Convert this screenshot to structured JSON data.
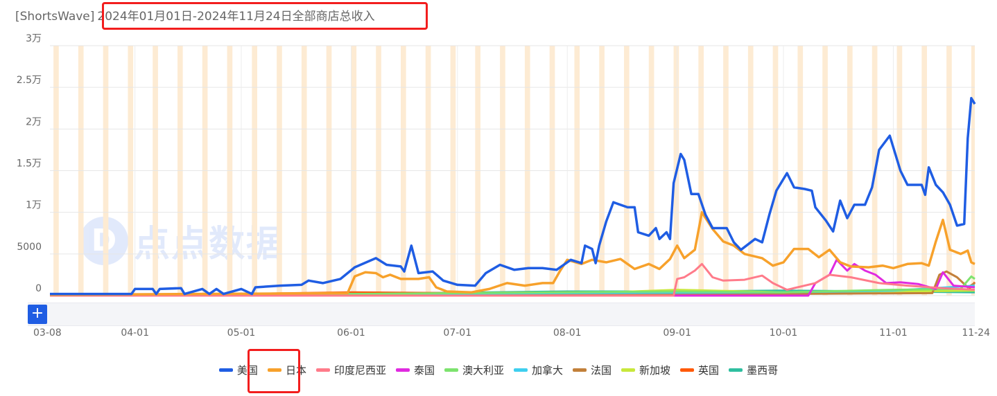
{
  "title": {
    "prefix": "[ShortsWave]",
    "main": "2024年01月01日-2024年11月24日全部商店总收入"
  },
  "watermark": "点点数据",
  "zoom_button": "+",
  "chart_data": {
    "type": "line",
    "title": "[ShortsWave] 2024年01月01日-2024年11月24日全部商店总收入",
    "x_range": [
      "2024-03-08",
      "2024-11-24"
    ],
    "x_ticks": [
      [
        "2024-03-08",
        "03-08"
      ],
      [
        "2024-04-01",
        "04-01"
      ],
      [
        "2024-05-01",
        "05-01"
      ],
      [
        "2024-06-01",
        "06-01"
      ],
      [
        "2024-07-01",
        "07-01"
      ],
      [
        "2024-08-01",
        "08-01"
      ],
      [
        "2024-09-01",
        "09-01"
      ],
      [
        "2024-10-01",
        "10-01"
      ],
      [
        "2024-11-01",
        "11-01"
      ],
      [
        "2024-11-24",
        "11-24"
      ]
    ],
    "ylim": [
      0,
      30000
    ],
    "y_ticks": [
      [
        0,
        "0"
      ],
      [
        5000,
        "5000"
      ],
      [
        10000,
        "1万"
      ],
      [
        15000,
        "1.5万"
      ],
      [
        20000,
        "2万"
      ],
      [
        25000,
        "2.5万"
      ],
      [
        30000,
        "3万"
      ]
    ],
    "grid": true,
    "weekend_shading": true,
    "shading_color": "#fdebd3",
    "legend_position": "bottom",
    "series": [
      {
        "name": "美国",
        "color": "#1f5de3",
        "points": [
          [
            "03-08",
            200
          ],
          [
            "03-31",
            200
          ],
          [
            "04-01",
            800
          ],
          [
            "04-06",
            800
          ],
          [
            "04-07",
            200
          ],
          [
            "04-08",
            800
          ],
          [
            "04-14",
            900
          ],
          [
            "04-15",
            200
          ],
          [
            "04-20",
            800
          ],
          [
            "04-22",
            200
          ],
          [
            "04-24",
            800
          ],
          [
            "04-26",
            200
          ],
          [
            "05-01",
            800
          ],
          [
            "05-04",
            200
          ],
          [
            "05-05",
            1000
          ],
          [
            "05-12",
            1200
          ],
          [
            "05-18",
            1300
          ],
          [
            "05-20",
            1800
          ],
          [
            "05-24",
            1500
          ],
          [
            "05-29",
            2000
          ],
          [
            "06-02",
            3400
          ],
          [
            "06-08",
            4500
          ],
          [
            "06-11",
            3700
          ],
          [
            "06-15",
            3500
          ],
          [
            "06-16",
            2900
          ],
          [
            "06-18",
            6000
          ],
          [
            "06-20",
            2700
          ],
          [
            "06-24",
            2900
          ],
          [
            "06-27",
            1800
          ],
          [
            "07-01",
            1300
          ],
          [
            "07-06",
            1200
          ],
          [
            "07-09",
            2700
          ],
          [
            "07-13",
            3700
          ],
          [
            "07-17",
            3100
          ],
          [
            "07-21",
            3300
          ],
          [
            "07-25",
            3300
          ],
          [
            "07-29",
            3100
          ],
          [
            "08-02",
            4300
          ],
          [
            "08-05",
            3900
          ],
          [
            "08-06",
            6000
          ],
          [
            "08-08",
            5600
          ],
          [
            "08-09",
            3900
          ],
          [
            "08-10",
            6000
          ],
          [
            "08-12",
            8900
          ],
          [
            "08-14",
            11200
          ],
          [
            "08-18",
            10600
          ],
          [
            "08-20",
            10600
          ],
          [
            "08-21",
            7600
          ],
          [
            "08-24",
            7200
          ],
          [
            "08-26",
            8100
          ],
          [
            "08-27",
            6800
          ],
          [
            "08-29",
            7600
          ],
          [
            "08-30",
            6800
          ],
          [
            "08-31",
            13500
          ],
          [
            "09-02",
            17000
          ],
          [
            "09-03",
            16300
          ],
          [
            "09-05",
            12200
          ],
          [
            "09-07",
            12200
          ],
          [
            "09-09",
            9700
          ],
          [
            "09-11",
            8100
          ],
          [
            "09-15",
            8100
          ],
          [
            "09-17",
            6400
          ],
          [
            "09-19",
            5500
          ],
          [
            "09-23",
            6800
          ],
          [
            "09-25",
            6400
          ],
          [
            "09-27",
            9700
          ],
          [
            "09-29",
            12600
          ],
          [
            "10-02",
            14700
          ],
          [
            "10-04",
            13000
          ],
          [
            "10-07",
            12800
          ],
          [
            "10-09",
            12600
          ],
          [
            "10-10",
            10600
          ],
          [
            "10-13",
            9000
          ],
          [
            "10-15",
            7700
          ],
          [
            "10-17",
            11400
          ],
          [
            "10-19",
            9300
          ],
          [
            "10-21",
            10900
          ],
          [
            "10-24",
            10900
          ],
          [
            "10-26",
            13000
          ],
          [
            "10-28",
            17500
          ],
          [
            "10-31",
            19200
          ],
          [
            "11-03",
            15000
          ],
          [
            "11-05",
            13300
          ],
          [
            "11-09",
            13300
          ],
          [
            "11-10",
            12100
          ],
          [
            "11-11",
            15400
          ],
          [
            "11-13",
            13300
          ],
          [
            "11-15",
            12400
          ],
          [
            "11-17",
            10900
          ],
          [
            "11-19",
            8400
          ],
          [
            "11-21",
            8600
          ],
          [
            "11-22",
            18900
          ],
          [
            "11-23",
            23700
          ],
          [
            "11-24",
            23000
          ]
        ]
      },
      {
        "name": "日本",
        "color": "#f7a12b",
        "points": [
          [
            "03-08",
            100
          ],
          [
            "05-31",
            300
          ],
          [
            "06-02",
            2300
          ],
          [
            "06-05",
            2800
          ],
          [
            "06-08",
            2700
          ],
          [
            "06-10",
            2200
          ],
          [
            "06-12",
            2500
          ],
          [
            "06-15",
            2000
          ],
          [
            "06-20",
            2000
          ],
          [
            "06-23",
            2200
          ],
          [
            "06-25",
            1000
          ],
          [
            "06-28",
            500
          ],
          [
            "07-05",
            400
          ],
          [
            "07-10",
            800
          ],
          [
            "07-15",
            1500
          ],
          [
            "07-20",
            1200
          ],
          [
            "07-25",
            1500
          ],
          [
            "07-28",
            1500
          ],
          [
            "07-30",
            3000
          ],
          [
            "08-01",
            4300
          ],
          [
            "08-05",
            3800
          ],
          [
            "08-08",
            4300
          ],
          [
            "08-12",
            4000
          ],
          [
            "08-16",
            4400
          ],
          [
            "08-20",
            3200
          ],
          [
            "08-24",
            3800
          ],
          [
            "08-27",
            3200
          ],
          [
            "08-30",
            4400
          ],
          [
            "09-01",
            6000
          ],
          [
            "09-03",
            4500
          ],
          [
            "09-06",
            5500
          ],
          [
            "09-08",
            10000
          ],
          [
            "09-11",
            8000
          ],
          [
            "09-14",
            6500
          ],
          [
            "09-17",
            6000
          ],
          [
            "09-20",
            5000
          ],
          [
            "09-25",
            4500
          ],
          [
            "09-28",
            3600
          ],
          [
            "10-01",
            4000
          ],
          [
            "10-04",
            5600
          ],
          [
            "10-08",
            5600
          ],
          [
            "10-11",
            4600
          ],
          [
            "10-14",
            5500
          ],
          [
            "10-17",
            4000
          ],
          [
            "10-20",
            3500
          ],
          [
            "10-25",
            3400
          ],
          [
            "10-29",
            3600
          ],
          [
            "11-01",
            3300
          ],
          [
            "11-05",
            3800
          ],
          [
            "11-09",
            3900
          ],
          [
            "11-11",
            3600
          ],
          [
            "11-13",
            6500
          ],
          [
            "11-15",
            9100
          ],
          [
            "11-17",
            5500
          ],
          [
            "11-20",
            5000
          ],
          [
            "11-22",
            5400
          ],
          [
            "11-23",
            4000
          ],
          [
            "11-24",
            3800
          ]
        ]
      },
      {
        "name": "印度尼西亚",
        "color": "#ff7b8a",
        "points": [
          [
            "08-31",
            0
          ],
          [
            "09-01",
            2000
          ],
          [
            "09-03",
            2200
          ],
          [
            "09-06",
            3000
          ],
          [
            "09-08",
            3800
          ],
          [
            "09-11",
            2200
          ],
          [
            "09-14",
            1800
          ],
          [
            "09-20",
            1900
          ],
          [
            "09-25",
            2400
          ],
          [
            "09-28",
            1500
          ],
          [
            "10-02",
            700
          ],
          [
            "10-10",
            1500
          ],
          [
            "10-14",
            2500
          ],
          [
            "10-20",
            2200
          ],
          [
            "10-28",
            1500
          ],
          [
            "11-05",
            1200
          ],
          [
            "11-15",
            900
          ],
          [
            "11-24",
            700
          ]
        ]
      },
      {
        "name": "泰国",
        "color": "#e02ae0",
        "points": [
          [
            "10-08",
            0
          ],
          [
            "10-10",
            1500
          ],
          [
            "10-14",
            2500
          ],
          [
            "10-16",
            4300
          ],
          [
            "10-19",
            3000
          ],
          [
            "10-21",
            3800
          ],
          [
            "10-24",
            3000
          ],
          [
            "10-27",
            2500
          ],
          [
            "10-30",
            1500
          ],
          [
            "11-03",
            1600
          ],
          [
            "11-08",
            1400
          ],
          [
            "11-13",
            800
          ],
          [
            "11-15",
            2800
          ],
          [
            "11-18",
            1200
          ],
          [
            "11-24",
            1000
          ]
        ]
      },
      {
        "name": "澳大利亚",
        "color": "#7de36e",
        "points": [
          [
            "03-08",
            100
          ],
          [
            "06-01",
            200
          ],
          [
            "08-01",
            400
          ],
          [
            "09-01",
            500
          ],
          [
            "10-01",
            400
          ],
          [
            "11-01",
            700
          ],
          [
            "11-20",
            800
          ],
          [
            "11-23",
            2300
          ],
          [
            "11-24",
            2000
          ]
        ]
      },
      {
        "name": "加拿大",
        "color": "#3fcfef",
        "points": [
          [
            "03-08",
            100
          ],
          [
            "06-01",
            200
          ],
          [
            "08-01",
            300
          ],
          [
            "10-01",
            400
          ],
          [
            "11-01",
            600
          ],
          [
            "11-24",
            1200
          ]
        ]
      },
      {
        "name": "法国",
        "color": "#c2803a",
        "points": [
          [
            "03-08",
            50
          ],
          [
            "10-01",
            200
          ],
          [
            "11-12",
            300
          ],
          [
            "11-14",
            2500
          ],
          [
            "11-16",
            2900
          ],
          [
            "11-19",
            2200
          ],
          [
            "11-22",
            1000
          ],
          [
            "11-24",
            1500
          ]
        ]
      },
      {
        "name": "新加坡",
        "color": "#c8e83c",
        "points": [
          [
            "03-08",
            100
          ],
          [
            "08-01",
            200
          ],
          [
            "09-01",
            700
          ],
          [
            "10-01",
            400
          ],
          [
            "11-01",
            500
          ],
          [
            "11-24",
            600
          ]
        ]
      },
      {
        "name": "英国",
        "color": "#ff5a0a",
        "points": [
          [
            "03-08",
            100
          ],
          [
            "05-01",
            200
          ],
          [
            "06-01",
            400
          ],
          [
            "07-01",
            300
          ],
          [
            "08-01",
            400
          ],
          [
            "09-01",
            400
          ],
          [
            "10-01",
            300
          ],
          [
            "11-01",
            500
          ],
          [
            "11-22",
            600
          ],
          [
            "11-24",
            1600
          ]
        ]
      },
      {
        "name": "墨西哥",
        "color": "#2fbfa0",
        "points": [
          [
            "03-08",
            100
          ],
          [
            "06-01",
            200
          ],
          [
            "08-01",
            500
          ],
          [
            "09-01",
            500
          ],
          [
            "10-01",
            600
          ],
          [
            "11-01",
            500
          ],
          [
            "11-24",
            400
          ]
        ]
      }
    ]
  }
}
